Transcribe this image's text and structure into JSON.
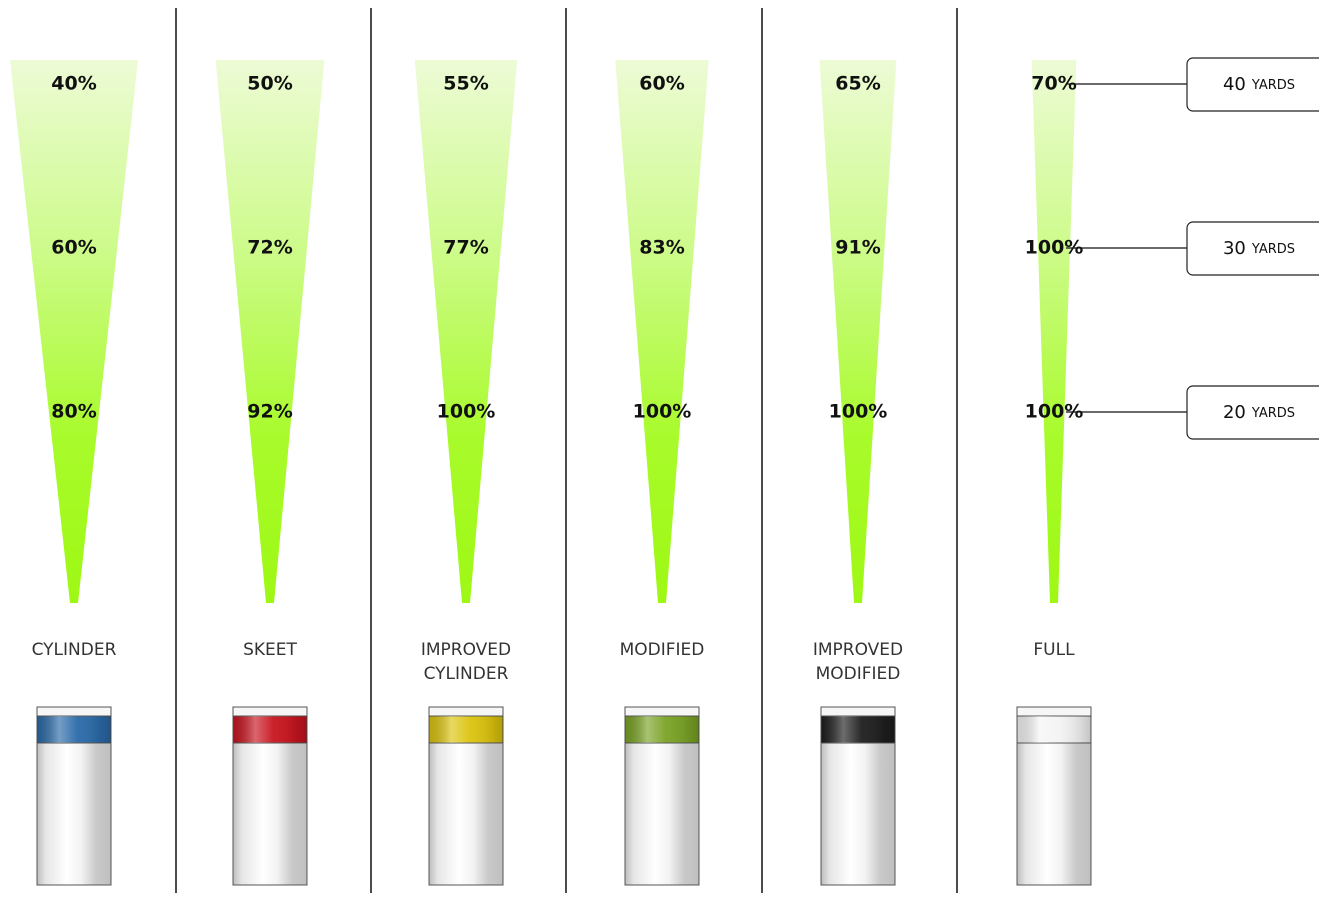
{
  "distances": [
    {
      "value": "40",
      "unit": "YARDS"
    },
    {
      "value": "30",
      "unit": "YARDS"
    },
    {
      "value": "20",
      "unit": "YARDS"
    }
  ],
  "chokes": [
    {
      "name_lines": [
        "CYLINDER"
      ],
      "percents": [
        "40%",
        "60%",
        "80%"
      ],
      "band_color": "#2a6aa8",
      "spread": 1.0
    },
    {
      "name_lines": [
        "SKEET"
      ],
      "percents": [
        "50%",
        "72%",
        "92%"
      ],
      "band_color": "#c8141f",
      "spread": 0.85
    },
    {
      "name_lines": [
        "IMPROVED",
        "CYLINDER"
      ],
      "percents": [
        "55%",
        "77%",
        "100%"
      ],
      "band_color": "#dcc40e",
      "spread": 0.8
    },
    {
      "name_lines": [
        "MODIFIED"
      ],
      "percents": [
        "60%",
        "83%",
        "100%"
      ],
      "band_color": "#7aa325",
      "spread": 0.73
    },
    {
      "name_lines": [
        "IMPROVED",
        "MODIFIED"
      ],
      "percents": [
        "65%",
        "91%",
        "100%"
      ],
      "band_color": "#1e1e1e",
      "spread": 0.6
    },
    {
      "name_lines": [
        "FULL"
      ],
      "percents": [
        "70%",
        "100%",
        "100%"
      ],
      "band_color": "#f4f4f4",
      "spread": 0.35
    }
  ]
}
